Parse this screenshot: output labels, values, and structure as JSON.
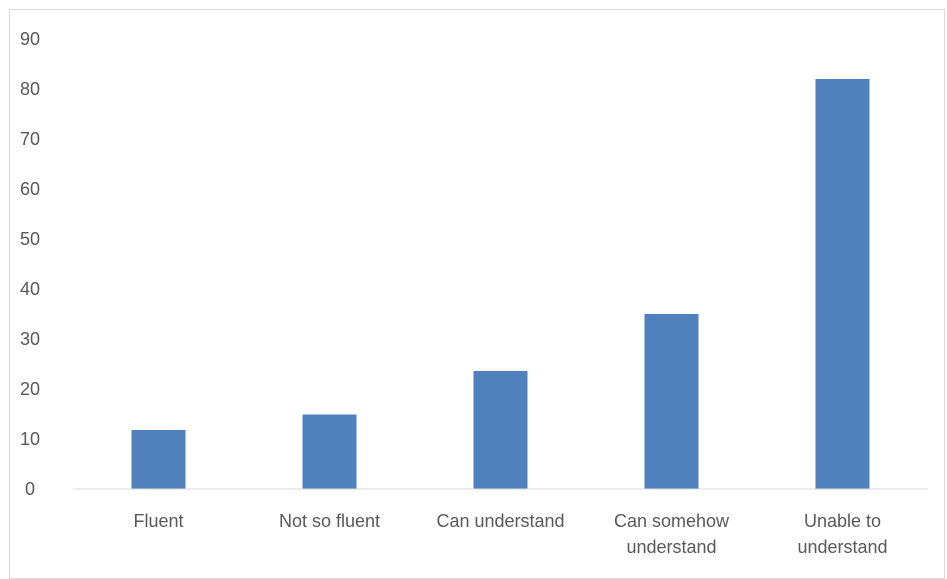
{
  "chart_data": {
    "type": "bar",
    "title": "",
    "xlabel": "",
    "ylabel": "",
    "categories": [
      [
        "Fluent"
      ],
      [
        "Not so fluent"
      ],
      [
        "Can understand"
      ],
      [
        "Can somehow",
        "understand"
      ],
      [
        "Unable to",
        "understand"
      ]
    ],
    "values": [
      11.8,
      14.9,
      23.6,
      35.0,
      82.0
    ],
    "ylim": [
      0,
      90
    ],
    "yticks": [
      "0",
      "10",
      "20",
      "30",
      "40",
      "50",
      "60",
      "70",
      "80",
      "90"
    ],
    "grid": false,
    "legend": "none",
    "bar_color": "#4f81bd",
    "axis_color": "#d9d9d9"
  }
}
